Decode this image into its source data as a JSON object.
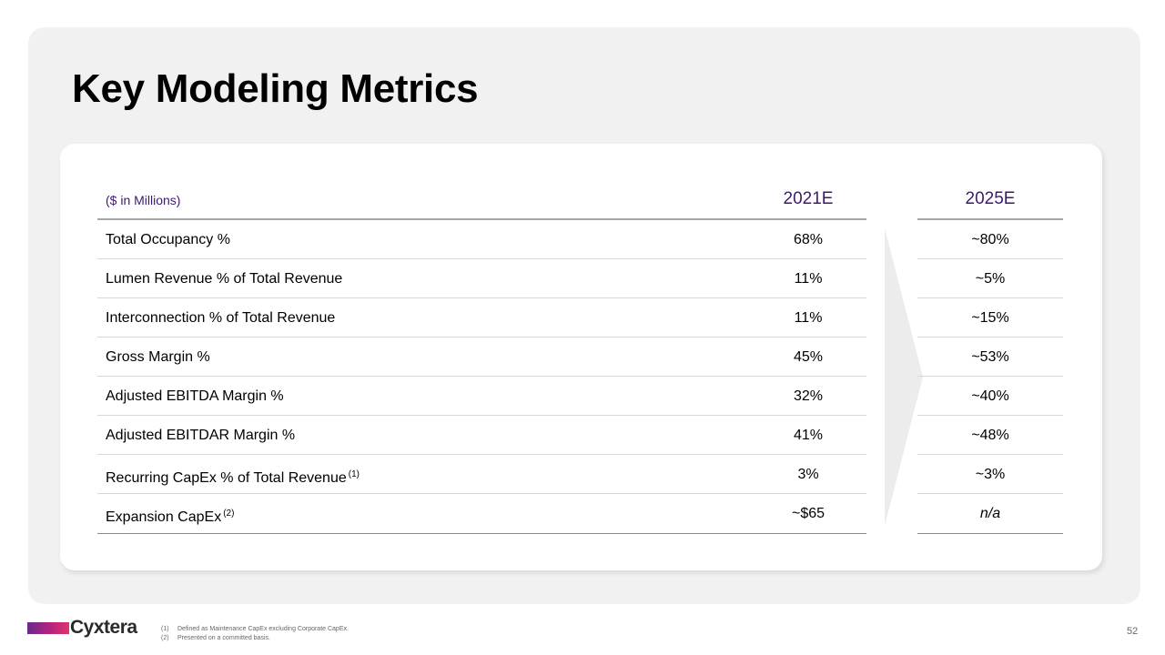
{
  "title": "Key Modeling Metrics",
  "table": {
    "units_label": "($ in Millions)",
    "columns": [
      "2021E",
      "2025E"
    ],
    "rows": [
      {
        "label": "Total Occupancy %",
        "note": "",
        "v2021": "68%",
        "v2025": "~80%"
      },
      {
        "label": "Lumen Revenue % of Total Revenue",
        "note": "",
        "v2021": "11%",
        "v2025": "~5%"
      },
      {
        "label": "Interconnection % of Total Revenue",
        "note": "",
        "v2021": "11%",
        "v2025": "~15%"
      },
      {
        "label": "Gross Margin %",
        "note": "",
        "v2021": "45%",
        "v2025": "~53%"
      },
      {
        "label": "Adjusted EBITDA Margin %",
        "note": "",
        "v2021": "32%",
        "v2025": "~40%"
      },
      {
        "label": "Adjusted EBITDAR Margin %",
        "note": "",
        "v2021": "41%",
        "v2025": "~48%"
      },
      {
        "label": "Recurring CapEx % of Total Revenue",
        "note": "(1)",
        "v2021": "3%",
        "v2025": "~3%"
      },
      {
        "label": "Expansion CapEx",
        "note": "(2)",
        "v2021": "~$65",
        "v2025": "n/a"
      }
    ]
  },
  "footnotes": [
    {
      "num": "(1)",
      "text": "Defined as Maintenance CapEx excluding Corporate CapEx."
    },
    {
      "num": "(2)",
      "text": "Presented on a committed basis."
    }
  ],
  "logo": {
    "text": "Cyxtera"
  },
  "page_number": "52",
  "colors": {
    "accent_purple": "#3d1a6e",
    "panel_bg": "#f1f1f1"
  }
}
